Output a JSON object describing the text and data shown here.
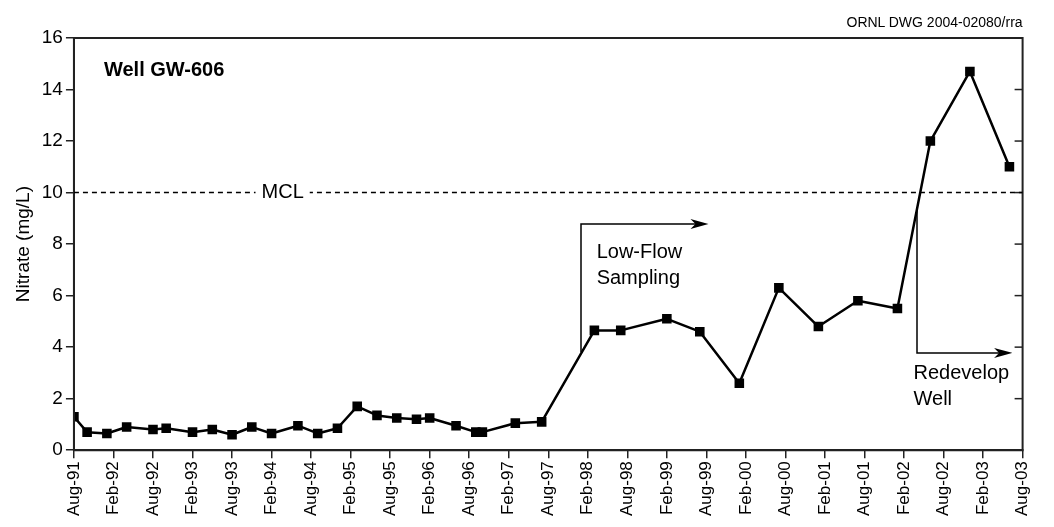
{
  "chart_data": {
    "type": "line",
    "title": "Well GW-606",
    "ylabel": "Nitrate (mg/L)",
    "x": [
      "1991-08",
      "1991-10",
      "1992-01",
      "1992-04",
      "1992-08",
      "1992-10",
      "1993-02",
      "1993-05",
      "1993-08",
      "1993-11",
      "1994-02",
      "1994-06",
      "1994-09",
      "1994-12",
      "1995-03",
      "1995-06",
      "1995-09",
      "1995-12",
      "1996-02",
      "1996-06",
      "1996-09",
      "1996-10",
      "1997-03",
      "1997-07",
      "1998-03",
      "1998-07",
      "1999-02",
      "1999-07",
      "2000-01",
      "2000-07",
      "2001-01",
      "2001-07",
      "2002-01",
      "2002-06",
      "2002-12",
      "2003-06"
    ],
    "series": [
      {
        "color": "#000000",
        "values": [
          1.3,
          0.7,
          0.65,
          0.9,
          0.8,
          0.85,
          0.7,
          0.8,
          0.6,
          0.9,
          0.65,
          0.95,
          0.65,
          0.85,
          1.7,
          1.35,
          1.25,
          1.2,
          1.25,
          0.95,
          0.7,
          0.7,
          1.05,
          1.1,
          4.65,
          4.65,
          5.1,
          4.6,
          2.6,
          6.3,
          4.8,
          5.8,
          5.5,
          12,
          14.7,
          11
        ]
      }
    ],
    "xlim": [
      "1991-08",
      "2003-08"
    ],
    "xticks": [
      {
        "value": "1991-08",
        "label": "Aug-91"
      },
      {
        "value": "1992-02",
        "label": "Feb-92"
      },
      {
        "value": "1992-08",
        "label": "Aug-92"
      },
      {
        "value": "1993-02",
        "label": "Feb-93"
      },
      {
        "value": "1993-08",
        "label": "Aug-93"
      },
      {
        "value": "1994-02",
        "label": "Feb-94"
      },
      {
        "value": "1994-08",
        "label": "Aug-94"
      },
      {
        "value": "1995-02",
        "label": "Feb-95"
      },
      {
        "value": "1995-08",
        "label": "Aug-95"
      },
      {
        "value": "1996-02",
        "label": "Feb-96"
      },
      {
        "value": "1996-08",
        "label": "Aug-96"
      },
      {
        "value": "1997-02",
        "label": "Feb-97"
      },
      {
        "value": "1997-08",
        "label": "Aug-97"
      },
      {
        "value": "1998-02",
        "label": "Feb-98"
      },
      {
        "value": "1998-08",
        "label": "Aug-98"
      },
      {
        "value": "1999-02",
        "label": "Feb-99"
      },
      {
        "value": "1999-08",
        "label": "Aug-99"
      },
      {
        "value": "2000-02",
        "label": "Feb-00"
      },
      {
        "value": "2000-08",
        "label": "Aug-00"
      },
      {
        "value": "2001-02",
        "label": "Feb-01"
      },
      {
        "value": "2001-08",
        "label": "Aug-01"
      },
      {
        "value": "2002-02",
        "label": "Feb-02"
      },
      {
        "value": "2002-08",
        "label": "Aug-02"
      },
      {
        "value": "2003-02",
        "label": "Feb-03"
      },
      {
        "value": "2003-08",
        "label": "Aug-03"
      }
    ],
    "ylim": [
      0,
      16
    ],
    "yticks": [
      0,
      2,
      4,
      6,
      8,
      10,
      12,
      14,
      16
    ],
    "ref_lines": [
      {
        "axis": "y",
        "value": 10,
        "label": "MCL",
        "line_style": "dashed"
      }
    ],
    "annotations": [
      "ORNL DWG 2004-02080/rra",
      {
        "text": "Low-Flow Sampling",
        "x": "1998-01",
        "y": 3.8
      },
      {
        "text": "Redevelop Well",
        "x": "2002-04",
        "y": 9.4
      }
    ],
    "grid": false,
    "legend": false,
    "marker": "square",
    "line_style": "solid"
  }
}
